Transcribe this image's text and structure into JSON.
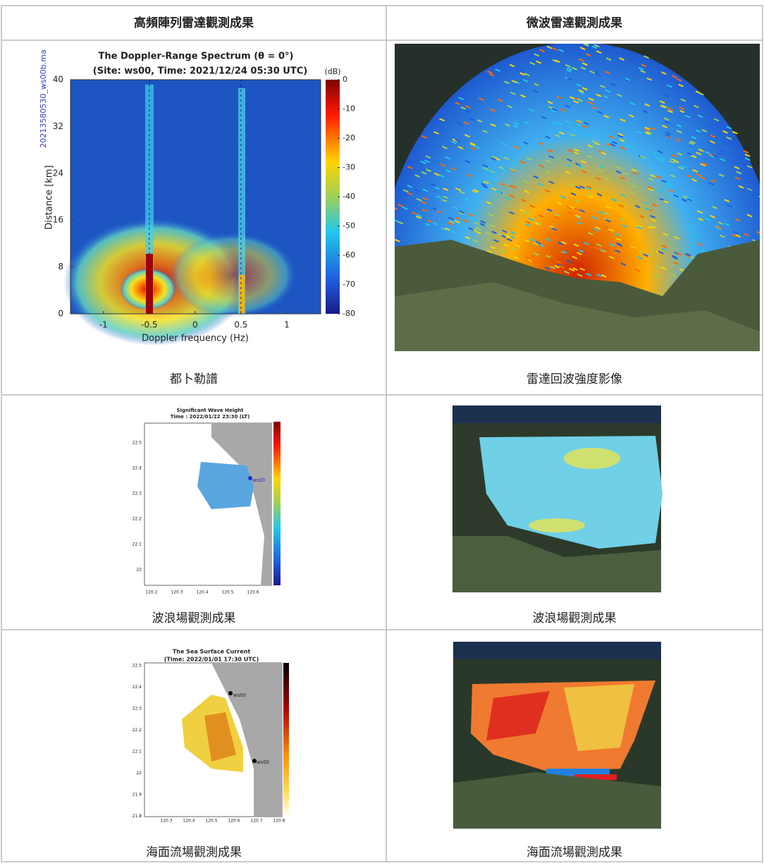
{
  "table": {
    "headers": [
      "高頻陣列雷達觀測成果",
      "微波雷達觀測成果"
    ],
    "rows": [
      [
        "都卜勒譜",
        "雷達回波強度影像"
      ],
      [
        "波浪場觀測成果",
        "波浪場觀測成果"
      ],
      [
        "海面流場觀測成果",
        "海面流場觀測成果"
      ]
    ]
  },
  "doppler_plot": {
    "title_line1": "The Doppler-Range Spectrum (θ = 0°)",
    "title_line2": "(Site: ws00, Time: 2021/12/24 05:30 UTC)",
    "side_label": "20213580530_ws00b.ma",
    "x_label": "Doppler frequency (Hz)",
    "y_label": "Distance [km]",
    "xlim": [
      -1.36,
      1.37
    ],
    "xticks": [
      -1,
      -0.5,
      0,
      0.5,
      1
    ],
    "ylim": [
      0,
      40
    ],
    "yticks": [
      0,
      8,
      16,
      24,
      32,
      40
    ],
    "colorbar_unit": "(dB)",
    "colorbar_lim": [
      -80,
      0
    ],
    "colorbar_ticks": [
      0,
      -10,
      -20,
      -30,
      -40,
      -50,
      -60,
      -70,
      -80
    ]
  },
  "wave_plot": {
    "title": "Significant Wave Height",
    "subtitle": "Time : 2022/01/22 23:30 (LT)",
    "yticks": [
      22.5,
      22.4,
      22.3,
      22.2,
      22.1,
      22
    ],
    "xticks": [
      120.2,
      120.3,
      120.4,
      120.5,
      120.6
    ],
    "station": "ws00"
  },
  "current_plot": {
    "title": "The Sea Surface Current",
    "subtitle": "(Time: 2022/01/01 17:30 UTC)",
    "yticks": [
      22.5,
      22.4,
      22.3,
      22.2,
      22.1,
      22,
      21.9,
      21.8
    ],
    "xticks": [
      120.3,
      120.4,
      120.5,
      120.6,
      120.7,
      120.8
    ],
    "stations": [
      "ws00",
      "ws00"
    ]
  }
}
